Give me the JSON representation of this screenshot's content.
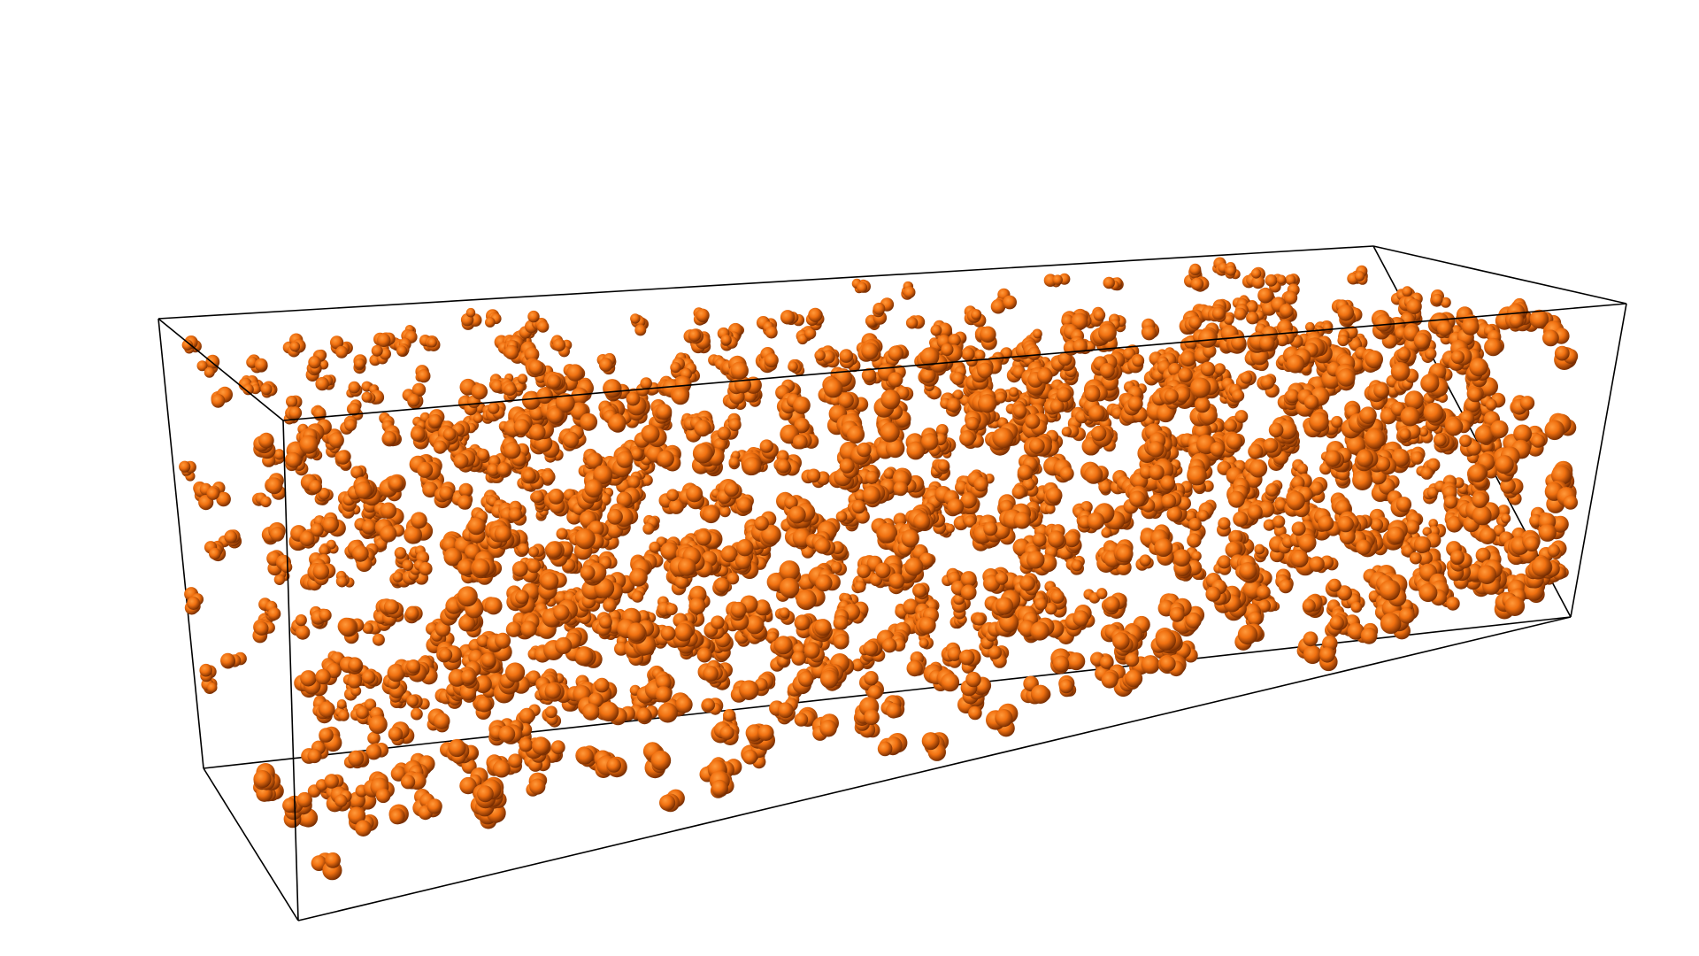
{
  "scene": {
    "background_color": "#ffffff",
    "box_edge_color": "#000000",
    "particle_color": "#f07010",
    "particle_shade_color": "#6a2600",
    "particle_highlight_color": "#ff9a3c",
    "particle_shape": "sphere-cluster"
  }
}
